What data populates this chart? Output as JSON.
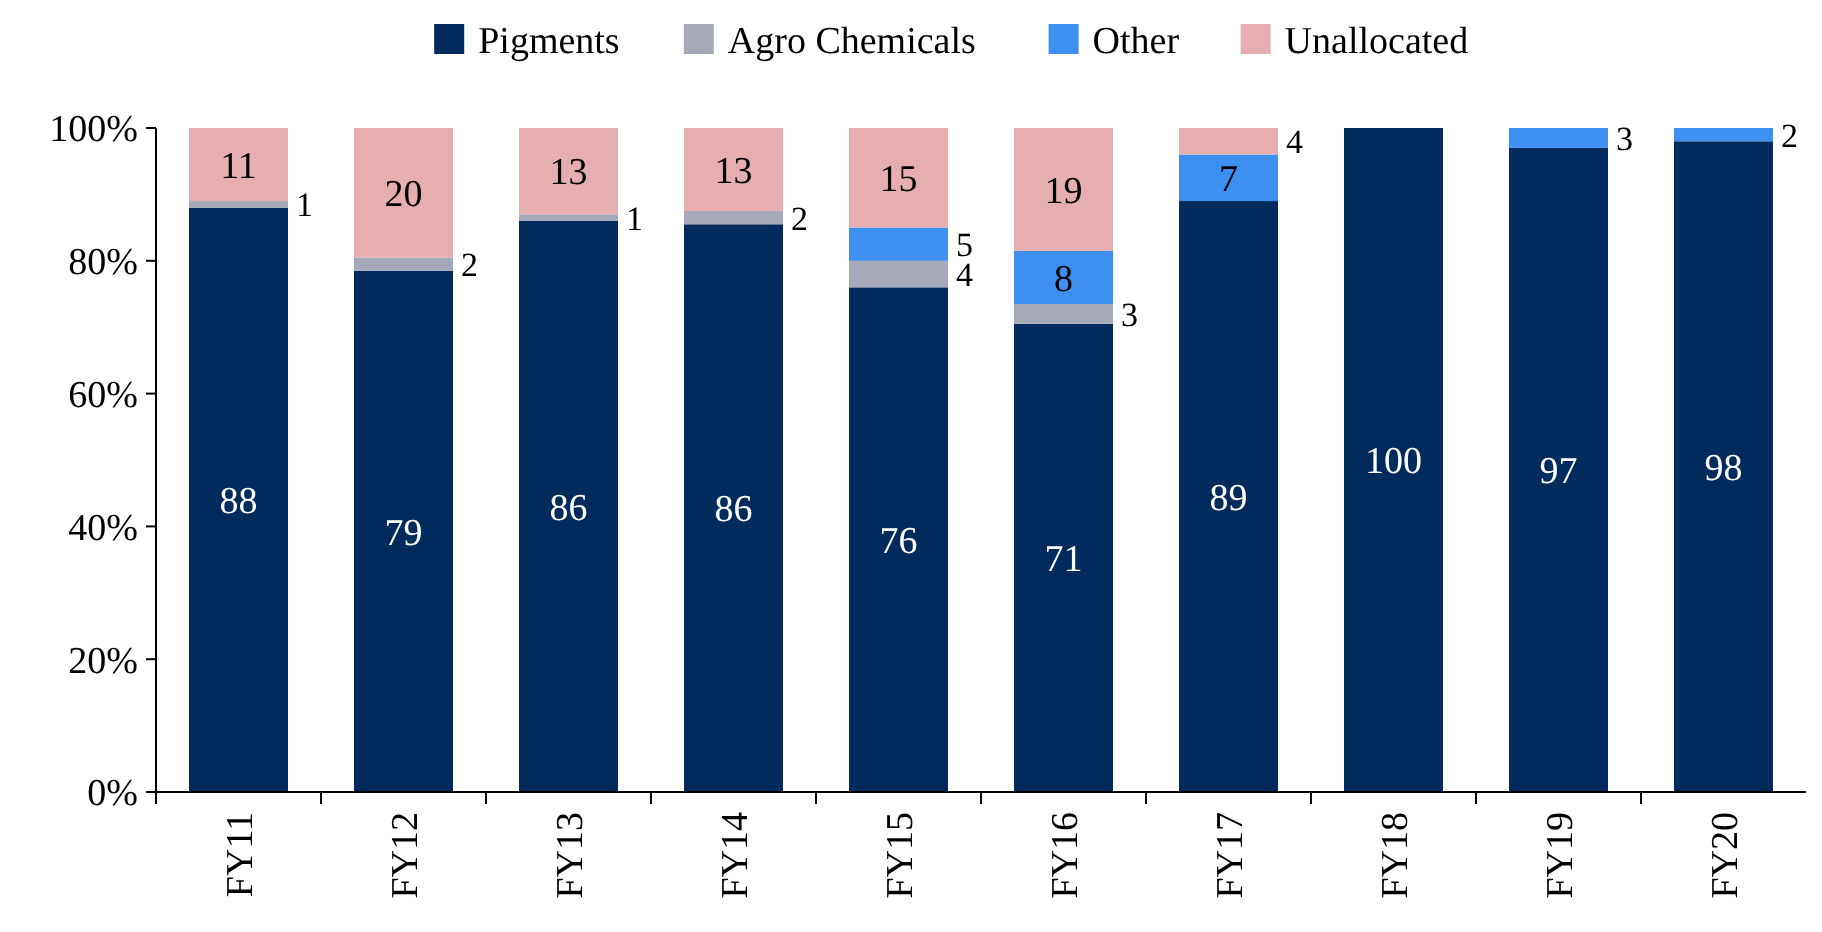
{
  "chart_data": {
    "type": "bar",
    "stacked": true,
    "categories": [
      "FY11",
      "FY12",
      "FY13",
      "FY14",
      "FY15",
      "FY16",
      "FY17",
      "FY18",
      "FY19",
      "FY20"
    ],
    "series": [
      {
        "name": "Pigments",
        "color": "#002b5c",
        "values": [
          88,
          78.5,
          86,
          85.5,
          76,
          70.5,
          89,
          100,
          97,
          98
        ],
        "value_labels": [
          "88",
          "79",
          "86",
          "86",
          "76",
          "71",
          "89",
          "100",
          "97",
          "98"
        ]
      },
      {
        "name": "Agro Chemicals",
        "color": "#a6aab8",
        "values": [
          1,
          2,
          1,
          2,
          4,
          3,
          null,
          null,
          null,
          null
        ],
        "value_labels": [
          "1",
          "2",
          "1",
          "2",
          "4",
          "3",
          null,
          null,
          null,
          null
        ]
      },
      {
        "name": "Other",
        "color": "#3d8ff0",
        "values": [
          null,
          null,
          null,
          null,
          5,
          8,
          7,
          null,
          3,
          2
        ],
        "value_labels": [
          null,
          null,
          null,
          null,
          "5",
          "8",
          "7",
          null,
          "3",
          "2"
        ]
      },
      {
        "name": "Unallocated",
        "color": "#e6aeb0",
        "values": [
          11,
          19.5,
          13,
          12.5,
          15,
          18.5,
          4,
          null,
          null,
          null
        ],
        "value_labels": [
          "11",
          "20",
          "13",
          "13",
          "15",
          "19",
          "4",
          null,
          null,
          null
        ]
      }
    ],
    "ylim": [
      0,
      100
    ],
    "yticks": [
      {
        "value": 0,
        "label": "0%"
      },
      {
        "value": 20,
        "label": "20%"
      },
      {
        "value": 40,
        "label": "40%"
      },
      {
        "value": 60,
        "label": "60%"
      },
      {
        "value": 80,
        "label": "80%"
      },
      {
        "value": 100,
        "label": "100%"
      }
    ],
    "grid": false,
    "legend": "top"
  }
}
